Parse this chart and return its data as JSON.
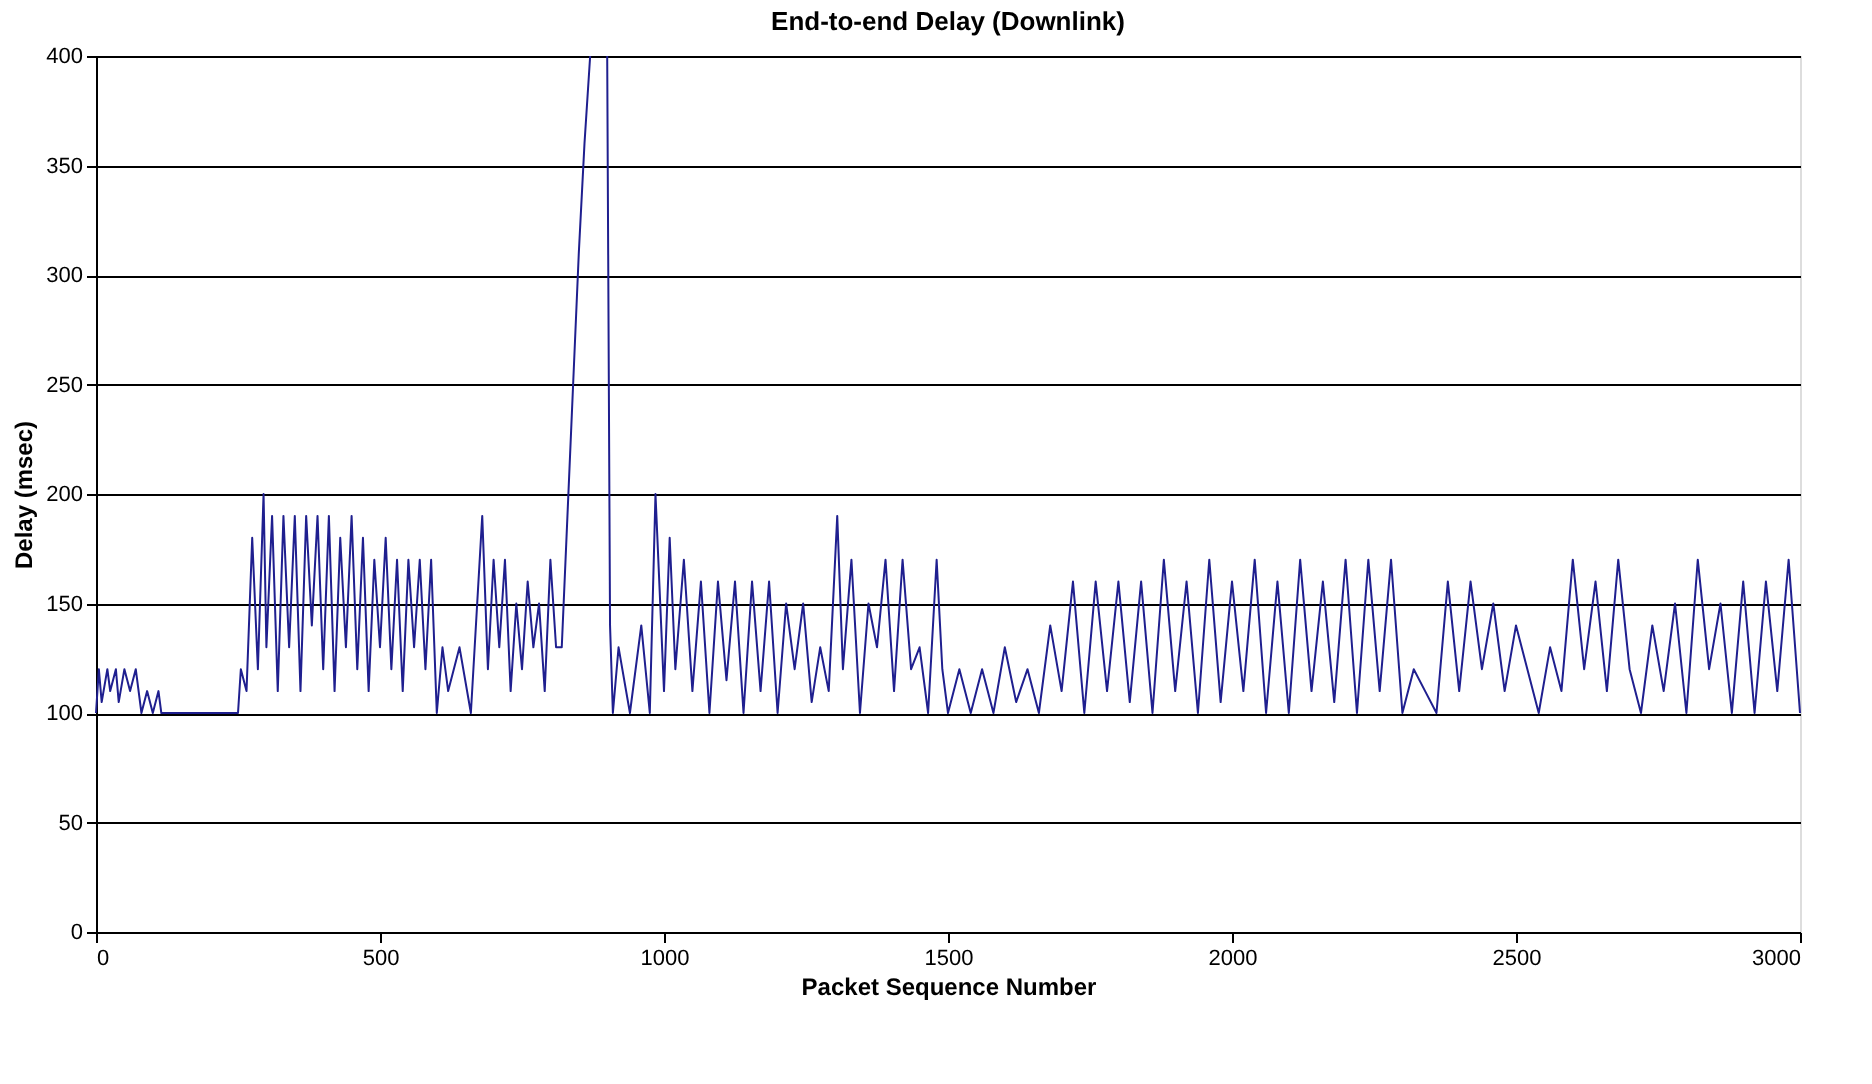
{
  "chart_data": {
    "type": "line",
    "title": "End-to-end Delay (Downlink)",
    "xlabel": "Packet Sequence Number",
    "ylabel": "Delay (msec)",
    "x": [
      0,
      5,
      10,
      20,
      25,
      35,
      40,
      50,
      60,
      70,
      80,
      90,
      100,
      110,
      115,
      120,
      250,
      255,
      265,
      275,
      285,
      295,
      300,
      310,
      320,
      330,
      340,
      350,
      360,
      370,
      380,
      390,
      400,
      410,
      420,
      430,
      440,
      450,
      460,
      470,
      480,
      490,
      500,
      510,
      520,
      530,
      540,
      550,
      560,
      570,
      580,
      590,
      600,
      610,
      620,
      640,
      660,
      680,
      690,
      700,
      710,
      720,
      730,
      740,
      750,
      760,
      770,
      780,
      790,
      800,
      810,
      820,
      830,
      840,
      850,
      860,
      870,
      885,
      900,
      905,
      910,
      920,
      940,
      960,
      975,
      985,
      1000,
      1010,
      1020,
      1035,
      1050,
      1065,
      1080,
      1095,
      1110,
      1125,
      1140,
      1155,
      1170,
      1185,
      1200,
      1215,
      1230,
      1245,
      1260,
      1275,
      1290,
      1305,
      1315,
      1330,
      1345,
      1360,
      1375,
      1390,
      1405,
      1420,
      1435,
      1450,
      1465,
      1480,
      1490,
      1500,
      1520,
      1540,
      1560,
      1580,
      1600,
      1620,
      1640,
      1660,
      1680,
      1700,
      1720,
      1740,
      1760,
      1780,
      1800,
      1820,
      1840,
      1860,
      1880,
      1900,
      1920,
      1940,
      1960,
      1980,
      2000,
      2020,
      2040,
      2060,
      2080,
      2100,
      2120,
      2140,
      2160,
      2180,
      2200,
      2220,
      2240,
      2260,
      2280,
      2300,
      2320,
      2340,
      2360,
      2380,
      2400,
      2420,
      2440,
      2460,
      2480,
      2500,
      2520,
      2540,
      2560,
      2580,
      2600,
      2620,
      2640,
      2660,
      2680,
      2700,
      2720,
      2740,
      2760,
      2780,
      2800,
      2820,
      2840,
      2860,
      2880,
      2900,
      2920,
      2940,
      2960,
      2980,
      3000
    ],
    "values": [
      100,
      120,
      105,
      120,
      110,
      120,
      105,
      120,
      110,
      120,
      100,
      110,
      100,
      110,
      100,
      100,
      100,
      120,
      110,
      180,
      120,
      200,
      130,
      190,
      110,
      190,
      130,
      190,
      110,
      190,
      140,
      190,
      120,
      190,
      110,
      180,
      130,
      190,
      120,
      180,
      110,
      170,
      130,
      180,
      120,
      170,
      110,
      170,
      130,
      170,
      120,
      170,
      100,
      130,
      110,
      130,
      100,
      190,
      120,
      170,
      130,
      170,
      110,
      150,
      120,
      160,
      130,
      150,
      110,
      170,
      130,
      130,
      190,
      250,
      310,
      360,
      400,
      null,
      400,
      140,
      100,
      130,
      100,
      140,
      100,
      200,
      110,
      180,
      120,
      170,
      110,
      160,
      100,
      160,
      115,
      160,
      100,
      160,
      110,
      160,
      100,
      150,
      120,
      150,
      105,
      130,
      110,
      190,
      120,
      170,
      100,
      150,
      130,
      170,
      110,
      170,
      120,
      130,
      100,
      170,
      120,
      100,
      120,
      100,
      120,
      100,
      130,
      105,
      120,
      100,
      140,
      110,
      160,
      100,
      160,
      110,
      160,
      105,
      160,
      100,
      170,
      110,
      160,
      100,
      170,
      105,
      160,
      110,
      170,
      100,
      160,
      100,
      170,
      110,
      160,
      105,
      170,
      100,
      170,
      110,
      170,
      100,
      120,
      110,
      100,
      160,
      110,
      160,
      120,
      150,
      110,
      140,
      120,
      100,
      130,
      110,
      170,
      120,
      160,
      110,
      170,
      120,
      100,
      140,
      110,
      150,
      100,
      170,
      120,
      150,
      100,
      160,
      100,
      160,
      110,
      170,
      100
    ],
    "color": "#1f1f8f",
    "xlim": [
      0,
      3000
    ],
    "xticks": [
      0,
      500,
      1000,
      1500,
      2000,
      2500,
      3000
    ],
    "ylim": [
      0,
      400
    ],
    "yticks": [
      0,
      50,
      100,
      150,
      200,
      250,
      300,
      350,
      400
    ],
    "grid": "y",
    "marker": "none",
    "line_style": "solid"
  }
}
